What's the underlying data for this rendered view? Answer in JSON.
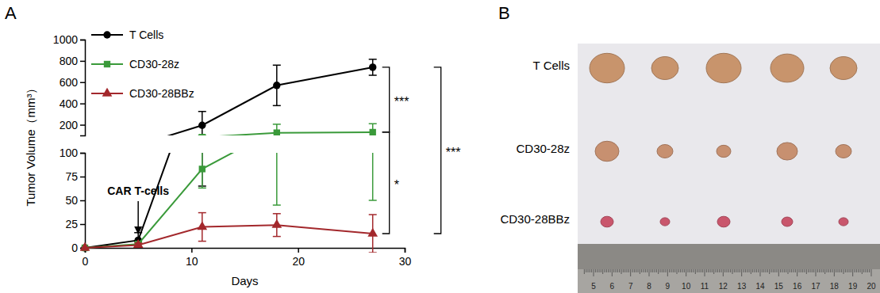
{
  "chart_data": {
    "type": "line",
    "panel_label": "A",
    "x_label": "Days",
    "y_label": "Tumor Volume（mm³）",
    "xlim": [
      0,
      30
    ],
    "xticks": [
      0,
      10,
      20,
      30
    ],
    "ylim": [
      0,
      1000
    ],
    "ybreak": 100,
    "yticks": [
      0,
      25,
      50,
      75,
      100,
      200,
      400,
      600,
      800,
      1000
    ],
    "x": [
      0,
      5,
      11,
      18,
      27
    ],
    "legend": "upper left",
    "series": [
      {
        "name": "T Cells",
        "color": "#000000",
        "marker": "circle",
        "values": [
          0,
          8,
          195,
          570,
          740
        ],
        "errors": [
          0,
          8,
          130,
          190,
          75
        ]
      },
      {
        "name": "CD30-28z",
        "color": "#3a9a3a",
        "marker": "square",
        "values": [
          0,
          4,
          83,
          125,
          130
        ],
        "errors": [
          0,
          2,
          20,
          80,
          80
        ]
      },
      {
        "name": "CD30-28BBz",
        "color": "#a3282c",
        "marker": "triangle",
        "values": [
          0,
          3,
          22,
          24,
          15
        ],
        "errors": [
          0,
          2,
          15,
          12,
          20
        ]
      }
    ],
    "annotations": [
      {
        "text": "CAR T-cells",
        "x": 5
      },
      {
        "text": "***",
        "between": [
          0,
          1
        ]
      },
      {
        "text": "*",
        "between": [
          1,
          2
        ]
      },
      {
        "text": "***",
        "between": [
          0,
          2
        ]
      }
    ]
  },
  "photo": {
    "panel_label": "B",
    "rows": [
      "T Cells",
      "CD30-28z",
      "CD30-28BBz"
    ],
    "ruler_labels": [
      5,
      6,
      7,
      8,
      9,
      10,
      11,
      12,
      13,
      14,
      15,
      16,
      17,
      18,
      19,
      20
    ]
  }
}
